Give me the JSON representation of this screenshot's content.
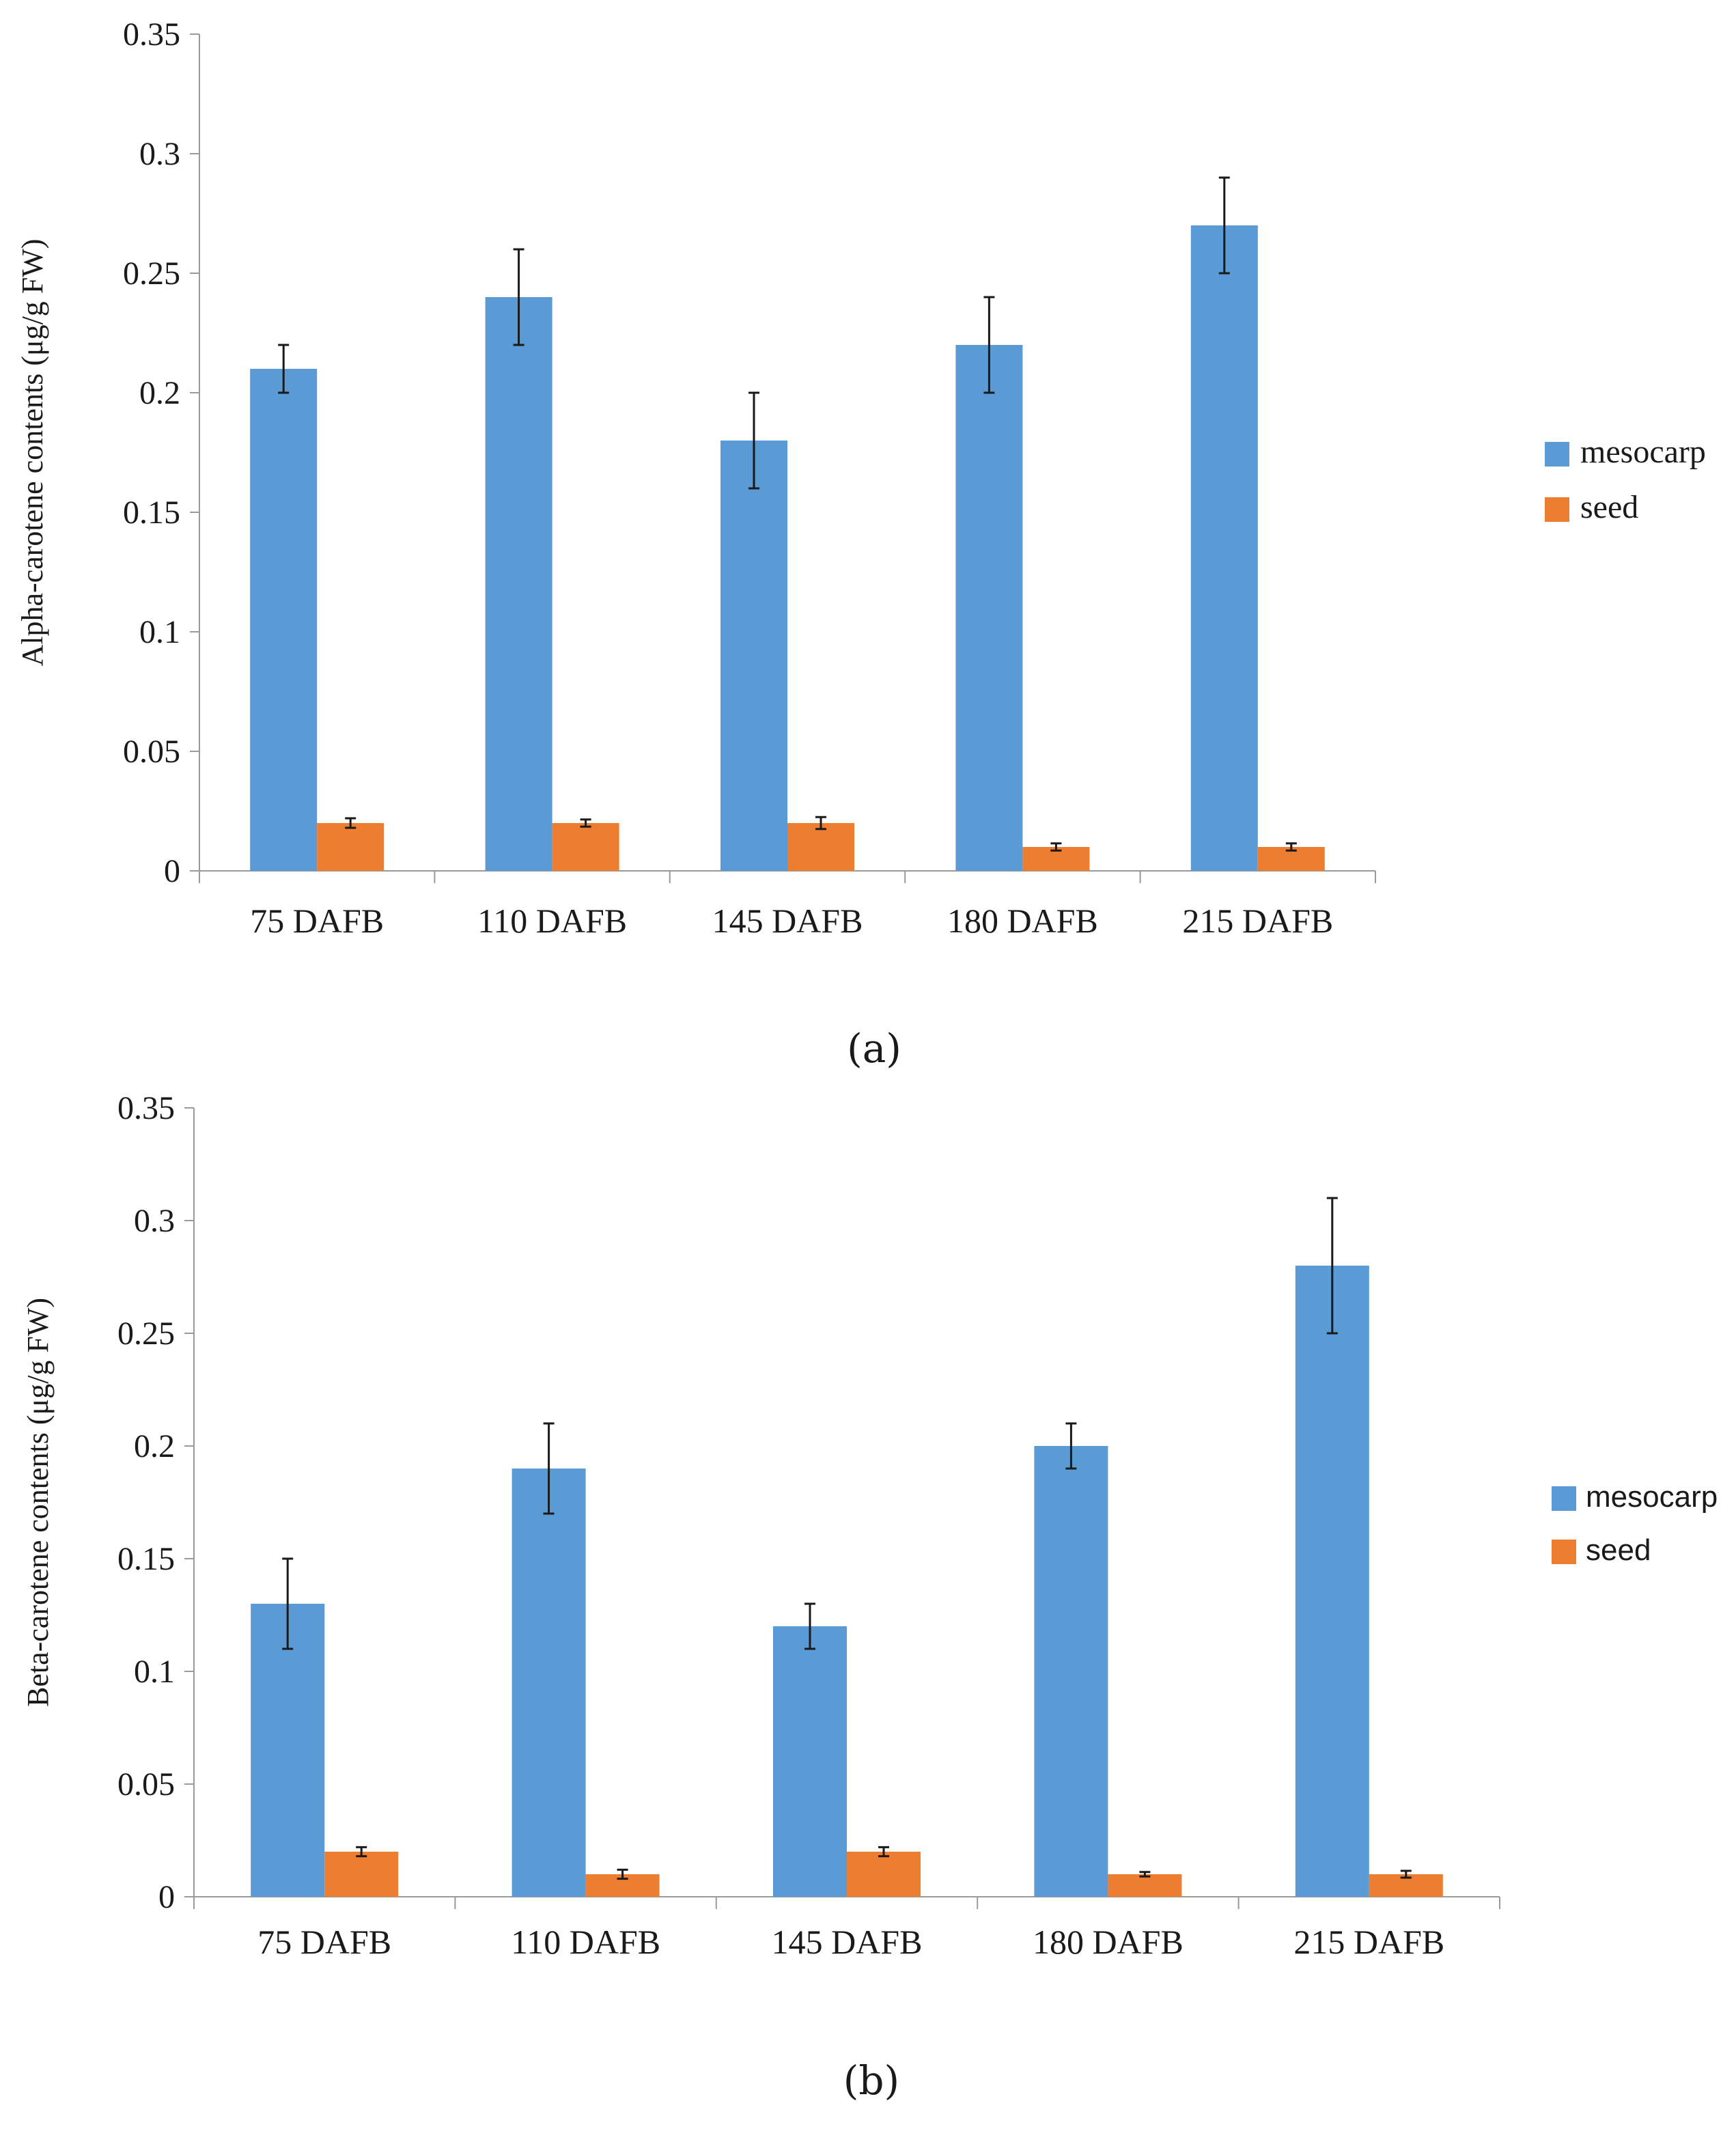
{
  "chart_data": [
    {
      "type": "bar",
      "panel_label": "(a)",
      "ylabel": "Alpha-carotene contents (μg/g FW)",
      "xlabel": "",
      "categories": [
        "75 DAFB",
        "110 DAFB",
        "145 DAFB",
        "180 DAFB",
        "215 DAFB"
      ],
      "ylim": [
        0,
        0.35
      ],
      "yticks": [
        0,
        0.05,
        0.1,
        0.15,
        0.2,
        0.25,
        0.3,
        0.35
      ],
      "ytick_labels": [
        "0",
        "0.05",
        "0.1",
        "0.15",
        "0.2",
        "0.25",
        "0.3",
        "0.35"
      ],
      "grid": false,
      "legend_position": "right",
      "series": [
        {
          "name": "mesocarp",
          "color": "#5b9bd5",
          "values": [
            0.21,
            0.24,
            0.18,
            0.22,
            0.27
          ],
          "errors": [
            0.01,
            0.02,
            0.02,
            0.02,
            0.02
          ]
        },
        {
          "name": "seed",
          "color": "#ed7d31",
          "values": [
            0.02,
            0.02,
            0.02,
            0.01,
            0.01
          ],
          "errors": [
            0.002,
            0.0015,
            0.0025,
            0.0015,
            0.0015
          ]
        }
      ]
    },
    {
      "type": "bar",
      "panel_label": "(b)",
      "ylabel": "Beta-carotene contents (μg/g FW)",
      "xlabel": "",
      "categories": [
        "75 DAFB",
        "110 DAFB",
        "145 DAFB",
        "180 DAFB",
        "215 DAFB"
      ],
      "ylim": [
        0,
        0.35
      ],
      "yticks": [
        0,
        0.05,
        0.1,
        0.15,
        0.2,
        0.25,
        0.3,
        0.35
      ],
      "ytick_labels": [
        "0",
        "0.05",
        "0.1",
        "0.15",
        "0.2",
        "0.25",
        "0.3",
        "0.35"
      ],
      "grid": false,
      "legend_position": "right",
      "series": [
        {
          "name": "mesocarp",
          "color": "#5b9bd5",
          "values": [
            0.13,
            0.19,
            0.12,
            0.2,
            0.28
          ],
          "errors": [
            0.02,
            0.02,
            0.01,
            0.01,
            0.03
          ]
        },
        {
          "name": "seed",
          "color": "#ed7d31",
          "values": [
            0.02,
            0.01,
            0.02,
            0.01,
            0.01
          ],
          "errors": [
            0.002,
            0.002,
            0.002,
            0.001,
            0.0015
          ]
        }
      ]
    }
  ]
}
